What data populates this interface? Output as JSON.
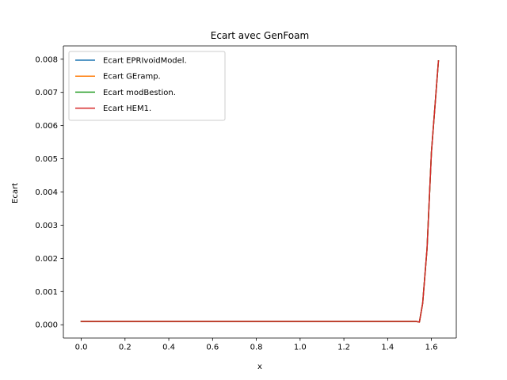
{
  "chart_data": {
    "type": "line",
    "title": "Ecart avec GenFoam",
    "xlabel": "x",
    "ylabel": "Ecart",
    "xlim": [
      -0.0816,
      1.7136
    ],
    "ylim": [
      -0.0004,
      0.0084
    ],
    "xticks": [
      0.0,
      0.2,
      0.4,
      0.6,
      0.8,
      1.0,
      1.2,
      1.4,
      1.6
    ],
    "xtick_labels": [
      "0.0",
      "0.2",
      "0.4",
      "0.6",
      "0.8",
      "1.0",
      "1.2",
      "1.4",
      "1.6"
    ],
    "yticks": [
      0.0,
      0.001,
      0.002,
      0.003,
      0.004,
      0.005,
      0.006,
      0.007,
      0.008
    ],
    "ytick_labels": [
      "0.000",
      "0.001",
      "0.002",
      "0.003",
      "0.004",
      "0.005",
      "0.006",
      "0.007",
      "0.008"
    ],
    "grid": false,
    "legend_position": "top-left",
    "x": [
      0.0,
      0.2,
      0.4,
      0.6,
      0.8,
      1.0,
      1.2,
      1.4,
      1.5,
      1.53,
      1.545,
      1.56,
      1.58,
      1.6,
      1.632
    ],
    "series": [
      {
        "name": "Ecart EPRIvoidModel.",
        "color": "#1f77b4",
        "values": [
          0.0001,
          0.0001,
          0.0001,
          0.0001,
          0.0001,
          0.0001,
          0.0001,
          0.0001,
          0.0001,
          0.0001,
          8e-05,
          0.00065,
          0.0023,
          0.0052,
          0.00795
        ]
      },
      {
        "name": "Ecart GEramp.",
        "color": "#ff7f0e",
        "values": [
          0.0001,
          0.0001,
          0.0001,
          0.0001,
          0.0001,
          0.0001,
          0.0001,
          0.0001,
          0.0001,
          0.0001,
          8e-05,
          0.00065,
          0.0023,
          0.0052,
          0.00795
        ]
      },
      {
        "name": "Ecart modBestion.",
        "color": "#2ca02c",
        "values": [
          0.0001,
          0.0001,
          0.0001,
          0.0001,
          0.0001,
          0.0001,
          0.0001,
          0.0001,
          0.0001,
          0.0001,
          8e-05,
          0.00065,
          0.0023,
          0.0052,
          0.00795
        ]
      },
      {
        "name": "Ecart HEM1.",
        "color": "#d62728",
        "values": [
          0.0001,
          0.0001,
          0.0001,
          0.0001,
          0.0001,
          0.0001,
          0.0001,
          0.0001,
          0.0001,
          0.0001,
          8e-05,
          0.00065,
          0.0023,
          0.0052,
          0.00795
        ]
      }
    ]
  }
}
